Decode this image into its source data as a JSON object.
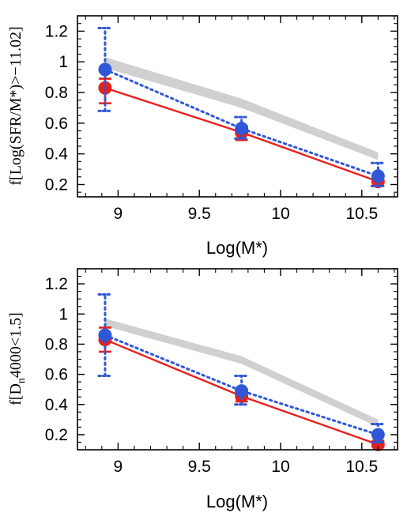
{
  "chart_data": [
    {
      "type": "line",
      "xlabel": "Log(M*)",
      "ylabel": "f[Log(SFR/M*)>−11.02]",
      "xlim": [
        8.75,
        10.72
      ],
      "ylim": [
        0.12,
        1.3
      ],
      "xticks": [
        9,
        9.5,
        10,
        10.5
      ],
      "xtick_labels": [
        "9",
        "9.5",
        "10",
        "10.5"
      ],
      "yticks": [
        0.2,
        0.4,
        0.6,
        0.8,
        1.0,
        1.2
      ],
      "ytick_labels": [
        "0.2",
        "0.4",
        "0.6",
        "0.8",
        "1",
        "1.2"
      ],
      "grid": false,
      "band": {
        "color": "#cfd0cf",
        "x": [
          8.92,
          9.76,
          10.6
        ],
        "lower": [
          0.96,
          0.7,
          0.36
        ],
        "upper": [
          1.03,
          0.76,
          0.41
        ]
      },
      "series": [
        {
          "style": "solid",
          "color": "#e8201c",
          "x": [
            8.92,
            9.76,
            10.6
          ],
          "y": [
            0.83,
            0.54,
            0.22
          ],
          "err_low": [
            0.73,
            0.49,
            0.19
          ],
          "err_high": [
            0.89,
            0.58,
            0.25
          ]
        },
        {
          "style": "dotted",
          "color": "#2f57d6",
          "x": [
            8.92,
            9.76,
            10.6
          ],
          "y": [
            0.95,
            0.565,
            0.255
          ],
          "err_low": [
            0.68,
            0.5,
            0.19
          ],
          "err_high": [
            1.22,
            0.64,
            0.34
          ]
        }
      ]
    },
    {
      "type": "line",
      "xlabel": "Log(M*)",
      "ylabel": "f[D",
      "ylabel_sub": "n",
      "ylabel_rest": "4000<1.5]",
      "xlim": [
        8.75,
        10.72
      ],
      "ylim": [
        0.1,
        1.3
      ],
      "xticks": [
        9,
        9.5,
        10,
        10.5
      ],
      "xtick_labels": [
        "9",
        "9.5",
        "10",
        "10.5"
      ],
      "yticks": [
        0.2,
        0.4,
        0.6,
        0.8,
        1.0,
        1.2
      ],
      "ytick_labels": [
        "0.2",
        "0.4",
        "0.6",
        "0.8",
        "1",
        "1.2"
      ],
      "grid": false,
      "band": {
        "color": "#cfd0cf",
        "x": [
          8.92,
          9.76,
          10.6
        ],
        "lower": [
          0.92,
          0.67,
          0.25
        ],
        "upper": [
          0.97,
          0.72,
          0.3
        ]
      },
      "series": [
        {
          "style": "solid",
          "color": "#e8201c",
          "x": [
            8.92,
            9.76,
            10.6
          ],
          "y": [
            0.83,
            0.455,
            0.135
          ],
          "err_low": [
            0.75,
            0.42,
            0.12
          ],
          "err_high": [
            0.91,
            0.49,
            0.16
          ]
        },
        {
          "style": "dotted",
          "color": "#2f57d6",
          "x": [
            8.92,
            9.76,
            10.6
          ],
          "y": [
            0.86,
            0.49,
            0.2
          ],
          "err_low": [
            0.59,
            0.4,
            0.15
          ],
          "err_high": [
            1.13,
            0.59,
            0.27
          ]
        }
      ]
    }
  ]
}
